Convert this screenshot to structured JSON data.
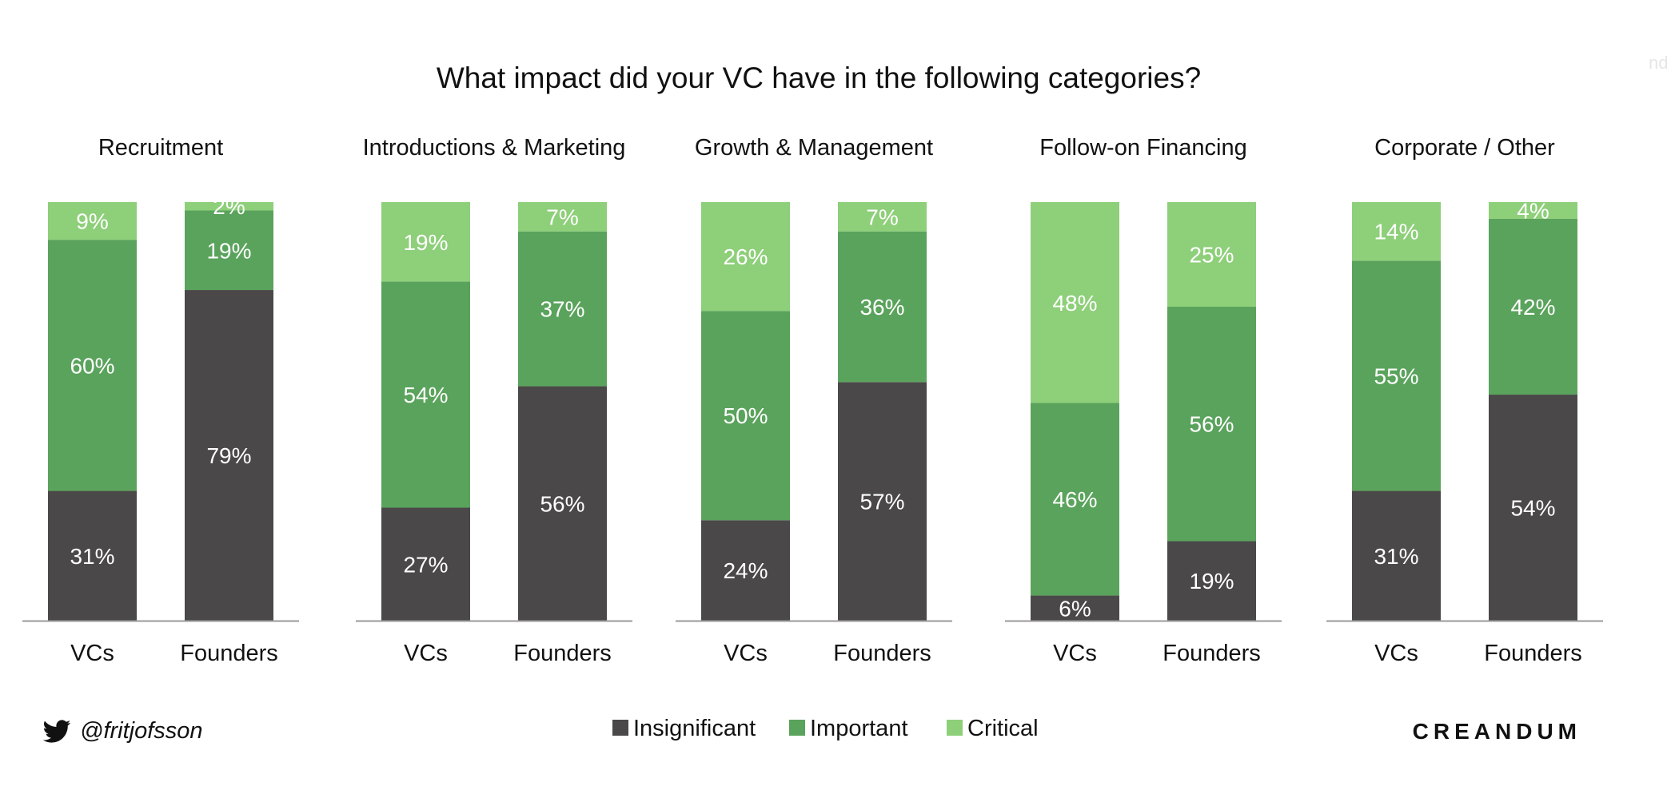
{
  "chart_data": {
    "type": "bar",
    "stacked": true,
    "title": "What impact did your VC have in the following categories?",
    "legend": [
      "Insignificant",
      "Important",
      "Critical"
    ],
    "legend_position": "bottom",
    "colors": {
      "Insignificant": "#4a4848",
      "Important": "#5aa35c",
      "Critical": "#8ecf7a"
    },
    "axis_color": "#9a9a9a",
    "ylim": [
      0,
      100
    ],
    "grid": false,
    "panels": [
      {
        "title": "Recruitment",
        "categories": [
          "VCs",
          "Founders"
        ],
        "series": [
          {
            "name": "Insignificant",
            "values": [
              31,
              79
            ],
            "labels": [
              "31%",
              "79%"
            ]
          },
          {
            "name": "Important",
            "values": [
              60,
              19
            ],
            "labels": [
              "60%",
              "19%"
            ]
          },
          {
            "name": "Critical",
            "values": [
              9,
              2
            ],
            "labels": [
              "9%",
              "2%"
            ]
          }
        ]
      },
      {
        "title": "Introductions & Marketing",
        "categories": [
          "VCs",
          "Founders"
        ],
        "series": [
          {
            "name": "Insignificant",
            "values": [
              27,
              56
            ],
            "labels": [
              "27%",
              "56%"
            ]
          },
          {
            "name": "Important",
            "values": [
              54,
              37
            ],
            "labels": [
              "54%",
              "37%"
            ]
          },
          {
            "name": "Critical",
            "values": [
              19,
              7
            ],
            "labels": [
              "19%",
              "7%"
            ]
          }
        ]
      },
      {
        "title": "Growth & Management",
        "categories": [
          "VCs",
          "Founders"
        ],
        "series": [
          {
            "name": "Insignificant",
            "values": [
              24,
              57
            ],
            "labels": [
              "24%",
              "57%"
            ]
          },
          {
            "name": "Important",
            "values": [
              50,
              36
            ],
            "labels": [
              "50%",
              "36%"
            ]
          },
          {
            "name": "Critical",
            "values": [
              26,
              7
            ],
            "labels": [
              "26%",
              "7%"
            ]
          }
        ]
      },
      {
        "title": "Follow-on Financing",
        "categories": [
          "VCs",
          "Founders"
        ],
        "series": [
          {
            "name": "Insignificant",
            "values": [
              6,
              19
            ],
            "labels": [
              "6%",
              "19%"
            ]
          },
          {
            "name": "Important",
            "values": [
              46,
              56
            ],
            "labels": [
              "46%",
              "56%"
            ]
          },
          {
            "name": "Critical",
            "values": [
              48,
              25
            ],
            "labels": [
              "48%",
              "25%"
            ]
          }
        ]
      },
      {
        "title": "Corporate / Other",
        "categories": [
          "VCs",
          "Founders"
        ],
        "series": [
          {
            "name": "Insignificant",
            "values": [
              31,
              54
            ],
            "labels": [
              "31%",
              "54%"
            ]
          },
          {
            "name": "Important",
            "values": [
              55,
              42
            ],
            "labels": [
              "55%",
              "42%"
            ]
          },
          {
            "name": "Critical",
            "values": [
              14,
              4
            ],
            "labels": [
              "14%",
              "4%"
            ]
          }
        ]
      }
    ]
  },
  "footer": {
    "twitter_handle": "@fritjofsson",
    "twitter_icon": "twitter-bird-icon",
    "brand": "CREANDUM",
    "corner_text": "nd"
  }
}
